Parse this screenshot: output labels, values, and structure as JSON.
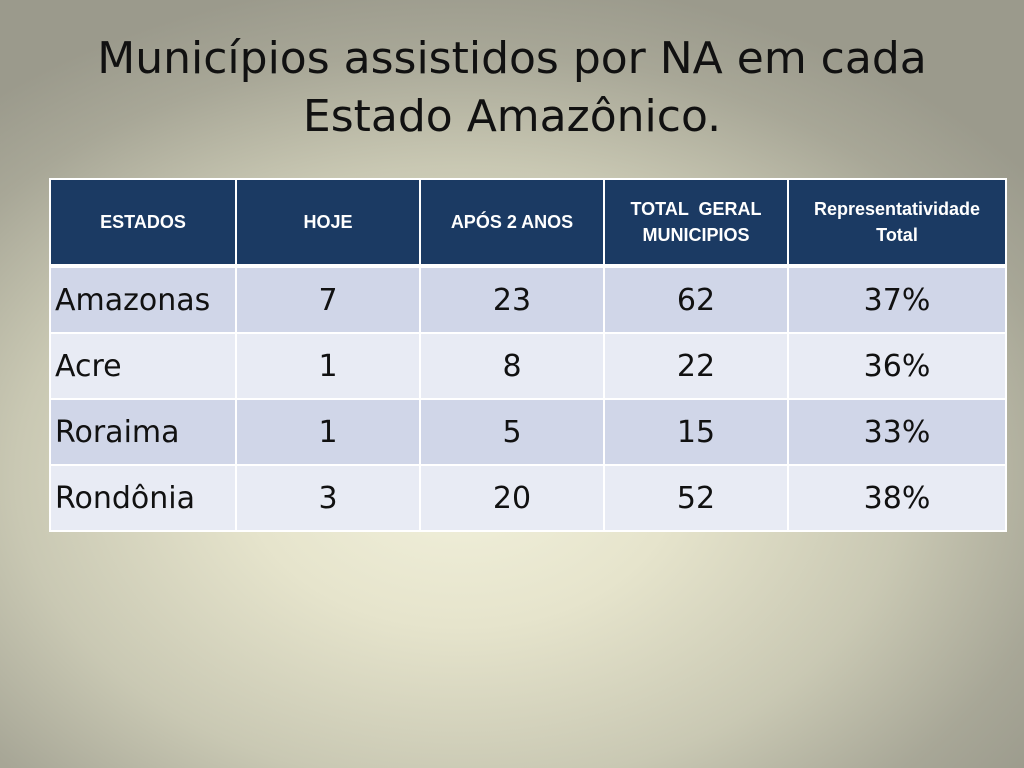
{
  "title": {
    "line1": "Municípios assistidos por NA em cada",
    "line2": "Estado Amazônico."
  },
  "table": {
    "headers": {
      "estados": "ESTADOS",
      "hoje": "HOJE",
      "apos": "APÓS 2 ANOS",
      "total_line1": "TOTAL  GERAL",
      "total_line2": "MUNICIPIOS",
      "repr_line1": "Representatividade",
      "repr_line2": "Total"
    },
    "rows": [
      {
        "estado": "Amazonas",
        "hoje": "7",
        "apos": "23",
        "total": "62",
        "repr": "37%"
      },
      {
        "estado": "Acre",
        "hoje": "1",
        "apos": "8",
        "total": "22",
        "repr": "36%"
      },
      {
        "estado": "Roraima",
        "hoje": "1",
        "apos": "5",
        "total": "15",
        "repr": "33%"
      },
      {
        "estado": "Rondônia",
        "hoje": "3",
        "apos": "20",
        "total": "52",
        "repr": "38%"
      }
    ]
  },
  "colors": {
    "header_bg": "#1b3a63",
    "row_odd": "#d0d6e8",
    "row_even": "#e8ebf4"
  }
}
